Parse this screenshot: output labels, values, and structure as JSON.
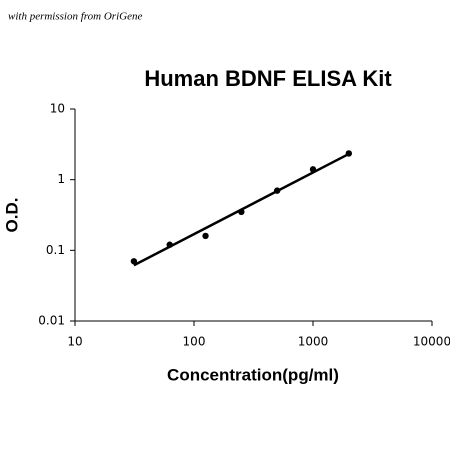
{
  "note": "with permission from OriGene",
  "chart_data": {
    "type": "scatter",
    "title": "Human BDNF ELISA Kit",
    "x_label": "Concentration(pg/ml)",
    "y_label": "O.D.",
    "x": [
      31.25,
      62.5,
      125,
      250,
      500,
      1000,
      2000
    ],
    "values": [
      0.07,
      0.12,
      0.16,
      0.35,
      0.7,
      1.4,
      2.35
    ],
    "color": "#000000",
    "xlog": true,
    "ylog": true,
    "trendline": true,
    "xlim": [
      10,
      10000
    ],
    "ylim": [
      0.01,
      10
    ],
    "xticks": [
      10,
      100,
      1000,
      10000
    ],
    "yticks": [
      0.01,
      0.1,
      1,
      10
    ]
  }
}
